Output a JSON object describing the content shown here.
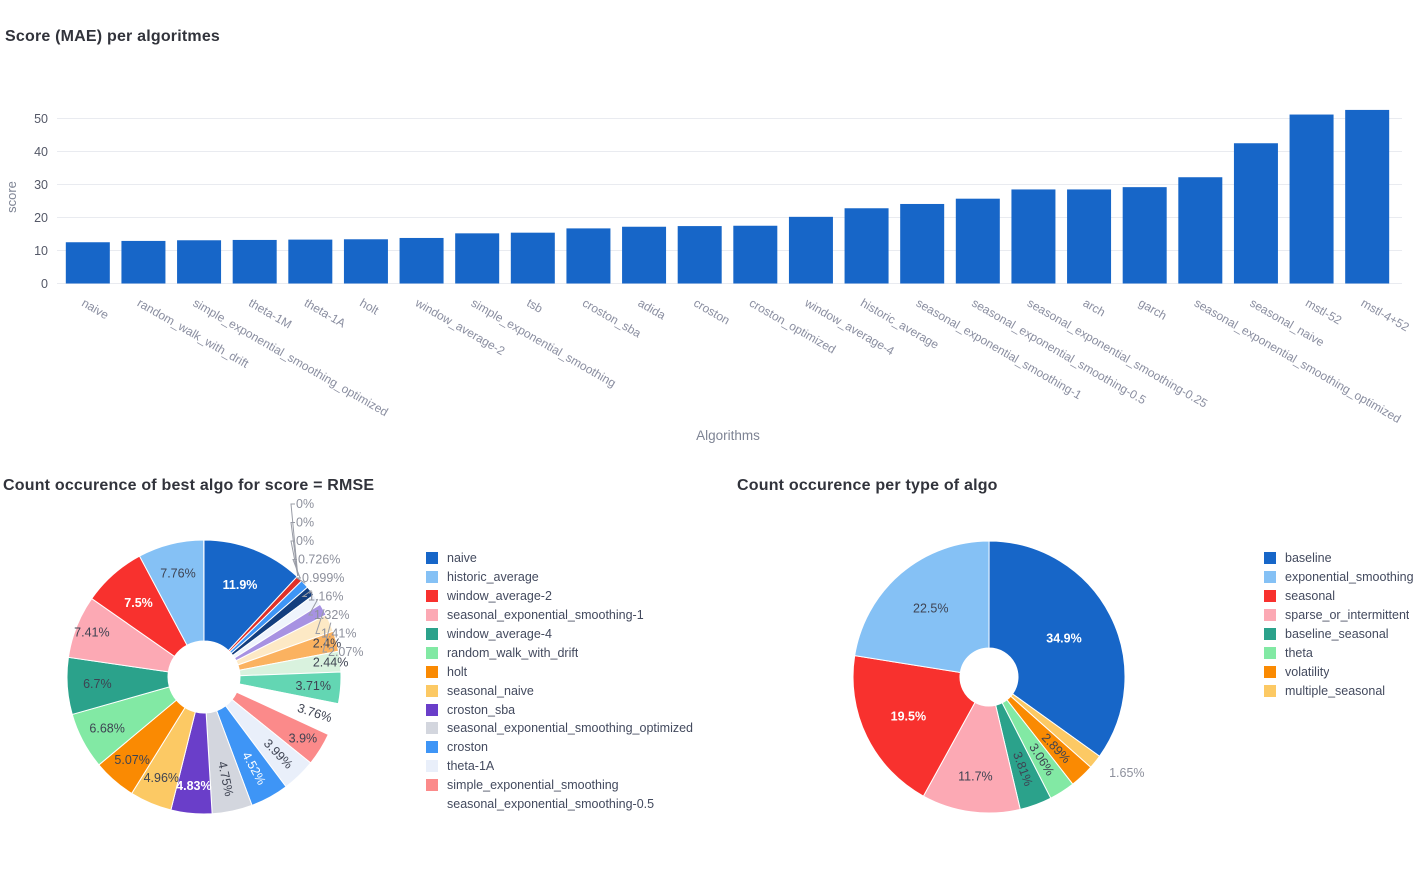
{
  "colors": {
    "bar": "#1766C8",
    "grid": "#E9EBF0",
    "y_tick_text": "#545867",
    "x_tick_text": "#8A8EA0",
    "axis_title_text": "#7E8494",
    "inside_label_dark": "#3E4352",
    "outside_label_gray": "#8D909C",
    "leader_line": "#999CA6"
  },
  "chart_data": [
    {
      "type": "bar",
      "title": "Score (MAE) per algoritmes",
      "xlabel": "Algorithms",
      "ylabel": "score",
      "ylim": [
        0,
        55
      ],
      "yticks": [
        0,
        10,
        20,
        30,
        40,
        50
      ],
      "grid": true,
      "categories": [
        "naive",
        "random_walk_with_drift",
        "simple_exponential_smoothing_optimized",
        "theta-1M",
        "theta-1A",
        "holt",
        "window_average-2",
        "simple_exponential_smoothing",
        "tsb",
        "croston_sba",
        "adida",
        "croston",
        "croston_optimized",
        "window_average-4",
        "historic_average",
        "seasonal_exponential_smoothing-1",
        "seasonal_exponential_smoothing-0.5",
        "seasonal_exponential_smoothing-0.25",
        "arch",
        "garch",
        "seasonal_exponential_smoothing_optimized",
        "seasonal_naive",
        "mstl-52",
        "mstl-4+52"
      ],
      "values": [
        12.5,
        12.9,
        13.1,
        13.2,
        13.3,
        13.4,
        13.8,
        15.2,
        15.4,
        16.7,
        17.2,
        17.4,
        17.5,
        20.2,
        22.8,
        24.1,
        25.7,
        28.5,
        28.5,
        29.2,
        32.2,
        42.5,
        51.2,
        52.6
      ]
    },
    {
      "type": "pie",
      "title": "Count occurence of best algo for score = RMSE",
      "legend_position": "right",
      "legend_visible_count": 14,
      "slices": [
        {
          "name": "naive",
          "pct": 11.9,
          "label": "11.9%",
          "color": "#1766C8",
          "pos": "inside",
          "tc": "#FFFFFF",
          "bold": true,
          "rf": 0.72
        },
        {
          "name": "historic_average",
          "pct": 7.76,
          "label": "7.76%",
          "color": "#85C1F5",
          "pos": "inside",
          "tc": "#3E4352",
          "rf": 0.78
        },
        {
          "name": "window_average-2",
          "pct": 7.5,
          "label": "7.5%",
          "color": "#F8312E",
          "pos": "inside",
          "tc": "#FFFFFF",
          "bold": true,
          "rf": 0.72
        },
        {
          "name": "seasonal_exponential_smoothing-1",
          "pct": 7.41,
          "label": "7.41%",
          "color": "#FCA9B4",
          "pos": "inside",
          "tc": "#3E4352",
          "rf": 0.88
        },
        {
          "name": "window_average-4",
          "pct": 6.7,
          "label": "6.7%",
          "color": "#2BA28B",
          "pos": "inside",
          "tc": "#3E4352",
          "rf": 0.78
        },
        {
          "name": "random_walk_with_drift",
          "pct": 6.68,
          "label": "6.68%",
          "color": "#82E9A4",
          "pos": "inside",
          "tc": "#3E4352",
          "rf": 0.8
        },
        {
          "name": "holt",
          "pct": 5.07,
          "label": "5.07%",
          "color": "#FA8A02",
          "pos": "inside",
          "tc": "#3E4352",
          "rf": 0.8
        },
        {
          "name": "seasonal_naive",
          "pct": 4.96,
          "label": "4.96%",
          "color": "#FCC964",
          "pos": "inside",
          "tc": "#3E4352",
          "rf": 0.8
        },
        {
          "name": "croston_sba",
          "pct": 4.83,
          "label": "4.83%",
          "color": "#6A3EC9",
          "pos": "inside",
          "tc": "#FFFFFF",
          "bold": true,
          "rf": 0.8
        },
        {
          "name": "seasonal_exponential_smoothing_optimized",
          "pct": 4.75,
          "label": "4.75%",
          "color": "#D3D6DE",
          "pos": "inside",
          "tc": "#3E4352",
          "rot": true,
          "rf": 0.76
        },
        {
          "name": "croston",
          "pct": 4.52,
          "label": "4.52%",
          "color": "#3E95F6",
          "pos": "inside",
          "tc": "#FFFFFF",
          "rot": true,
          "rf": 0.76
        },
        {
          "name": "theta-1A",
          "pct": 3.99,
          "label": "3.99%",
          "color": "#E9EFFA",
          "pos": "inside",
          "tc": "#3E4352",
          "rot": true,
          "rf": 0.78
        },
        {
          "name": "simple_exponential_smoothing",
          "pct": 3.9,
          "label": "3.9%",
          "color": "#FB8A8A",
          "pos": "inside",
          "tc": "#3E4352",
          "rf": 0.85
        },
        {
          "name": "seasonal_exponential_smoothing-0.5",
          "pct": 3.76,
          "label": "3.76%",
          "color": "#FFFFFF",
          "pos": "inside",
          "tc": "#3E4352",
          "rot": true,
          "rf": 0.85
        },
        {
          "name": "",
          "pct": 3.71,
          "label": "3.71%",
          "color": "#63D6B3",
          "pos": "inside",
          "tc": "#3E4352",
          "rf": 0.8
        },
        {
          "name": "",
          "pct": 2.44,
          "label": "2.44%",
          "color": "#D9F2DE",
          "pos": "inside",
          "tc": "#3E4352",
          "rf": 0.93
        },
        {
          "name": "",
          "pct": 2.4,
          "label": "2.4%",
          "color": "#FBB260",
          "pos": "inside",
          "tc": "#3E4352",
          "rf": 0.93
        },
        {
          "name": "",
          "pct": 2.07,
          "label": "2.07%",
          "color": "#FDE9C5",
          "pos": "leader"
        },
        {
          "name": "",
          "pct": 1.41,
          "label": "1.41%",
          "color": "#A792E2",
          "pos": "leader"
        },
        {
          "name": "",
          "pct": 1.32,
          "label": "1.32%",
          "color": "#EFF4FC",
          "pos": "leader"
        },
        {
          "name": "",
          "pct": 1.16,
          "label": "1.16%",
          "color": "#133E7E",
          "pos": "leader"
        },
        {
          "name": "",
          "pct": 0.999,
          "label": "0.999%",
          "color": "#3E95F6",
          "pos": "leader"
        },
        {
          "name": "",
          "pct": 0.726,
          "label": "0.726%",
          "color": "#E03028",
          "pos": "leader"
        },
        {
          "name": "",
          "pct": 0,
          "label": "0%",
          "color": "#FFFFFF",
          "pos": "leader"
        },
        {
          "name": "",
          "pct": 0,
          "label": "0%",
          "color": "#FFFFFF",
          "pos": "leader"
        },
        {
          "name": "",
          "pct": 0,
          "label": "0%",
          "color": "#FFFFFF",
          "pos": "leader"
        }
      ]
    },
    {
      "type": "pie",
      "title": "Count occurence per type of algo",
      "legend_position": "right",
      "legend_visible_count": 8,
      "slices": [
        {
          "name": "baseline",
          "pct": 34.9,
          "label": "34.9%",
          "color": "#1766C8",
          "pos": "inside",
          "tc": "#FFFFFF",
          "bold": true,
          "rf": 0.62
        },
        {
          "name": "exponential_smoothing",
          "pct": 22.5,
          "label": "22.5%",
          "color": "#85C1F5",
          "pos": "inside",
          "tc": "#3E4352",
          "rf": 0.66
        },
        {
          "name": "seasonal",
          "pct": 19.5,
          "label": "19.5%",
          "color": "#F8312E",
          "pos": "inside",
          "tc": "#FFFFFF",
          "bold": true,
          "rf": 0.66
        },
        {
          "name": "sparse_or_intermittent",
          "pct": 11.7,
          "label": "11.7%",
          "color": "#FCA9B4",
          "pos": "inside",
          "tc": "#3E4352",
          "rf": 0.74
        },
        {
          "name": "baseline_seasonal",
          "pct": 3.81,
          "label": "3.81%",
          "color": "#2BA28B",
          "pos": "inside",
          "tc": "#3E4352",
          "rot": true,
          "rf": 0.72
        },
        {
          "name": "theta",
          "pct": 3.06,
          "label": "3.06%",
          "color": "#82E9A4",
          "pos": "inside",
          "tc": "#3E4352",
          "rot": true,
          "rf": 0.72
        },
        {
          "name": "volatility",
          "pct": 2.89,
          "label": "2.89%",
          "color": "#FA8A02",
          "pos": "inside",
          "tc": "#3E4352",
          "rot": true,
          "rf": 0.72
        },
        {
          "name": "multiple_seasonal",
          "pct": 1.65,
          "label": "1.65%",
          "color": "#FCC964",
          "pos": "outside",
          "tc": "#8D909C"
        }
      ]
    }
  ]
}
